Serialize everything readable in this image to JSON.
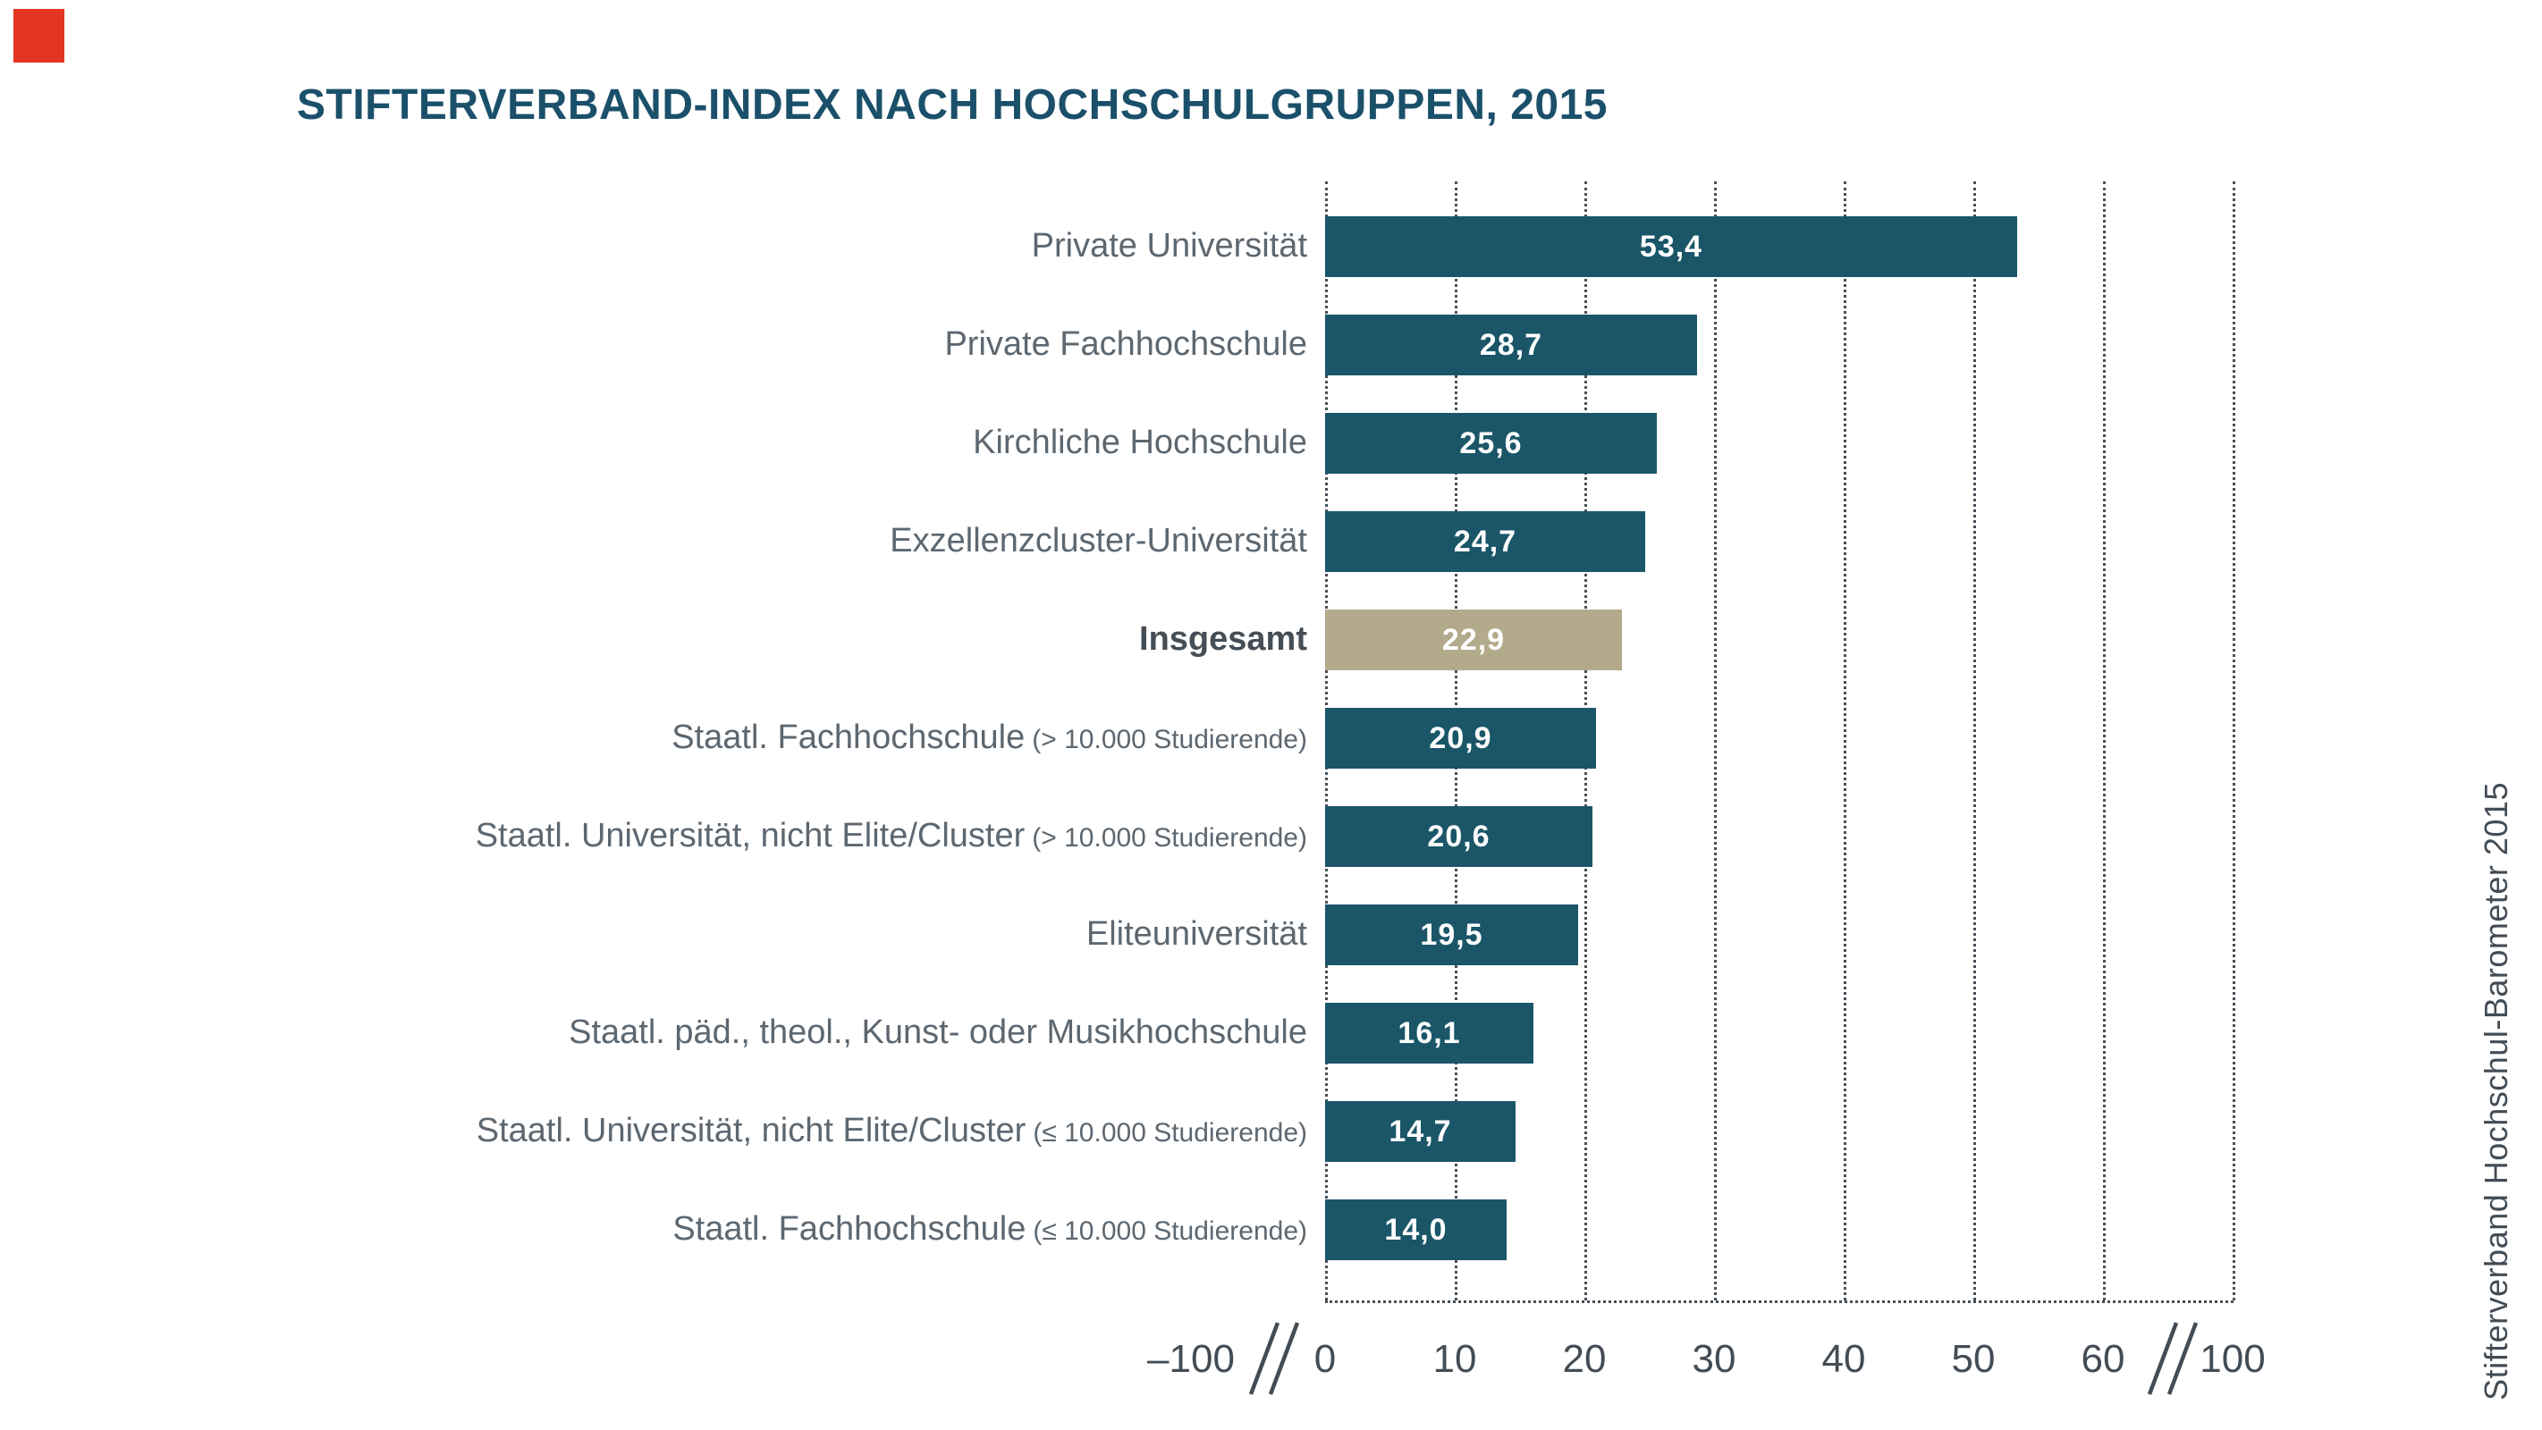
{
  "title": "STIFTERVERBAND-INDEX NACH HOCHSCHULGRUPPEN, 2015",
  "source_caption": "Stifterverband Hochschul-Barometer 2015",
  "brand": {
    "logo_color": "#e23522"
  },
  "colors": {
    "bar": "#1a5668",
    "highlight_bar": "#b3a98b",
    "title": "#1b506b",
    "label": "#5d6770",
    "label_highlight": "#454e56",
    "axis_text": "#434c54",
    "grid_dots": "#474f57",
    "value_text": "#ffffff",
    "background": "#ffffff"
  },
  "chart_data": {
    "type": "bar",
    "orientation": "horizontal",
    "title": "STIFTERVERBAND-INDEX NACH HOCHSCHULGRUPPEN, 2015",
    "xlabel": "",
    "ylabel": "",
    "grid": "dotted-vertical",
    "legend": false,
    "x_ticks": [
      "–100",
      "0",
      "10",
      "20",
      "30",
      "40",
      "50",
      "60",
      "100"
    ],
    "x_axis_breaks": [
      [
        "–100",
        "0"
      ],
      [
        "60",
        "100"
      ]
    ],
    "xlim_displayed": [
      0,
      69
    ],
    "categories": [
      "Private Universität",
      "Private Fachhochschule",
      "Kirchliche Hochschule",
      "Exzellenzcluster-Universität",
      "Insgesamt",
      "Staatl. Fachhochschule (> 10.000 Studierende)",
      "Staatl. Universität, nicht Elite/Cluster (> 10.000 Studierende)",
      "Eliteuniversität",
      "Staatl. päd., theol., Kunst- oder Musikhochschule",
      "Staatl. Universität, nicht Elite/Cluster (≤ 10.000 Studierende)",
      "Staatl. Fachhochschule (≤ 10.000 Studierende)"
    ],
    "values": [
      53.4,
      28.7,
      25.6,
      24.7,
      22.9,
      20.9,
      20.6,
      19.5,
      16.1,
      14.7,
      14.0
    ],
    "bars": [
      {
        "label": "Private Universität",
        "note": "",
        "value": 53.4,
        "value_display": "53,4",
        "highlighted": false
      },
      {
        "label": "Private Fachhochschule",
        "note": "",
        "value": 28.7,
        "value_display": "28,7",
        "highlighted": false
      },
      {
        "label": "Kirchliche Hochschule",
        "note": "",
        "value": 25.6,
        "value_display": "25,6",
        "highlighted": false
      },
      {
        "label": "Exzellenzcluster-Universität",
        "note": "",
        "value": 24.7,
        "value_display": "24,7",
        "highlighted": false
      },
      {
        "label": "Insgesamt",
        "note": "",
        "value": 22.9,
        "value_display": "22,9",
        "highlighted": true
      },
      {
        "label": "Staatl. Fachhochschule",
        "note": "(> 10.000 Studierende)",
        "value": 20.9,
        "value_display": "20,9",
        "highlighted": false
      },
      {
        "label": "Staatl. Universität, nicht Elite/Cluster",
        "note": "(> 10.000 Studierende)",
        "value": 20.6,
        "value_display": "20,6",
        "highlighted": false
      },
      {
        "label": "Eliteuniversität",
        "note": "",
        "value": 19.5,
        "value_display": "19,5",
        "highlighted": false
      },
      {
        "label": "Staatl. päd., theol., Kunst- oder Musikhochschule",
        "note": "",
        "value": 16.1,
        "value_display": "16,1",
        "highlighted": false
      },
      {
        "label": "Staatl. Universität, nicht Elite/Cluster",
        "note": "(≤ 10.000 Studierende)",
        "value": 14.7,
        "value_display": "14,7",
        "highlighted": false
      },
      {
        "label": "Staatl. Fachhochschule",
        "note": "(≤ 10.000 Studierende)",
        "value": 14.0,
        "value_display": "14,0",
        "highlighted": false
      }
    ]
  }
}
